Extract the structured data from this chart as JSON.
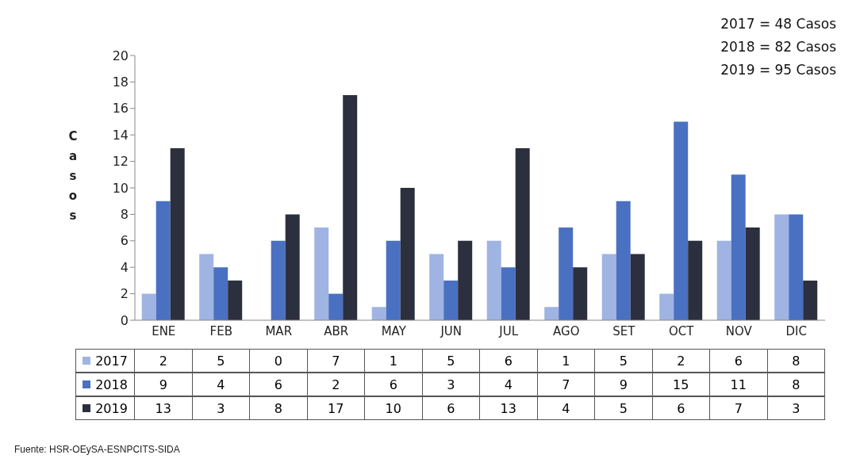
{
  "chart_data": {
    "type": "bar",
    "ylabel": "Casos",
    "categories": [
      "ENE",
      "FEB",
      "MAR",
      "ABR",
      "MAY",
      "JUN",
      "JUL",
      "AGO",
      "SET",
      "OCT",
      "NOV",
      "DIC"
    ],
    "series": [
      {
        "name": "2017",
        "color": "#9fb4e2",
        "values": [
          2,
          5,
          0,
          7,
          1,
          5,
          6,
          1,
          5,
          2,
          6,
          8
        ]
      },
      {
        "name": "2018",
        "color": "#4a70c2",
        "values": [
          9,
          4,
          6,
          2,
          6,
          3,
          4,
          7,
          9,
          15,
          11,
          8
        ]
      },
      {
        "name": "2019",
        "color": "#2c2f3d",
        "values": [
          13,
          3,
          8,
          17,
          10,
          6,
          13,
          4,
          5,
          6,
          7,
          3
        ]
      }
    ],
    "ylim": [
      0,
      20
    ],
    "yticks": [
      0,
      2,
      4,
      6,
      8,
      10,
      12,
      14,
      16,
      18,
      20
    ],
    "legend": "bottom",
    "data_labels": true,
    "annotations": [
      "2017 = 48 Casos",
      "2018 = 82 Casos",
      "2019 = 95 Casos",
      "Fuente: HSR-OEySA-ESNPCITS-SIDA"
    ]
  }
}
